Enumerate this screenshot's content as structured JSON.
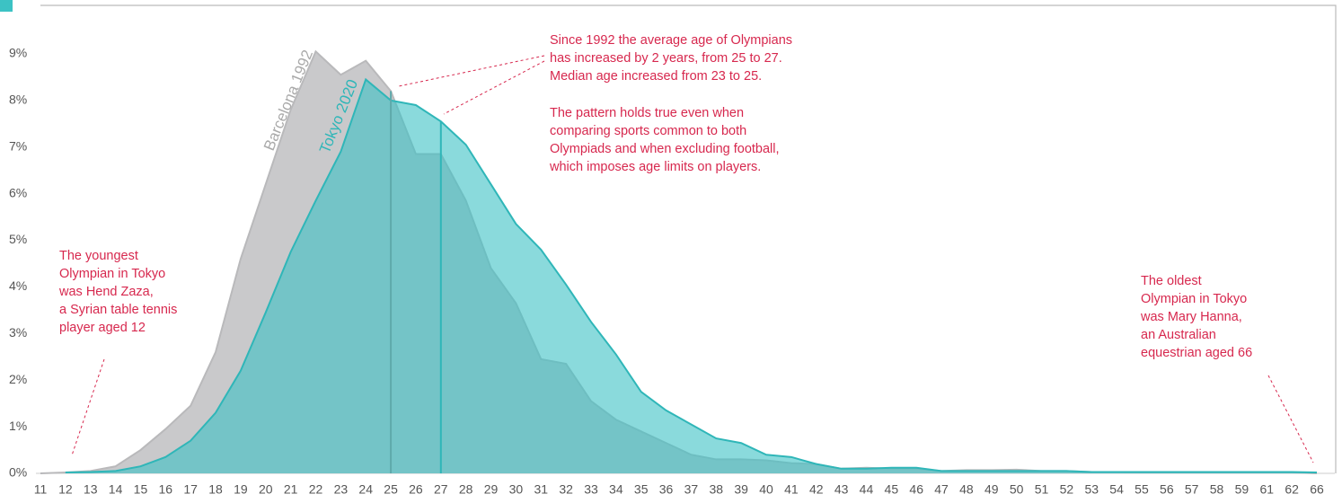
{
  "chart_data": {
    "type": "area",
    "categories": [
      11,
      12,
      13,
      14,
      15,
      16,
      17,
      18,
      19,
      20,
      21,
      22,
      23,
      24,
      25,
      26,
      27,
      28,
      29,
      30,
      31,
      32,
      33,
      34,
      35,
      36,
      37,
      38,
      39,
      40,
      41,
      42,
      43,
      44,
      45,
      46,
      47,
      48,
      49,
      50,
      51,
      52,
      53,
      54,
      55,
      56,
      57,
      58,
      59,
      61,
      62,
      66
    ],
    "series": [
      {
        "name": "Barcelona 1992",
        "color": "#c9c9cb",
        "values": [
          0,
          0.02,
          0.05,
          0.15,
          0.5,
          0.95,
          1.45,
          2.6,
          4.6,
          6.2,
          7.8,
          9.05,
          8.55,
          8.85,
          8.2,
          6.85,
          6.85,
          5.85,
          4.4,
          3.65,
          2.45,
          2.35,
          1.55,
          1.15,
          0.9,
          0.65,
          0.4,
          0.3,
          0.3,
          0.28,
          0.22,
          0.2,
          0.1,
          0.12,
          0.1,
          0.1,
          0.05,
          0.07,
          0.07,
          0.08,
          0.05,
          0.05,
          0.03,
          0.03,
          0.02,
          0.02,
          0.02,
          0.02,
          0.02,
          0.02,
          0.02,
          0
        ]
      },
      {
        "name": "Tokyo 2020",
        "color": "#3cc2c4",
        "values": [
          null,
          0.02,
          0.03,
          0.05,
          0.15,
          0.35,
          0.7,
          1.3,
          2.2,
          3.45,
          4.75,
          5.85,
          6.9,
          8.45,
          8.0,
          7.9,
          7.55,
          7.05,
          6.2,
          5.35,
          4.8,
          4.05,
          3.25,
          2.55,
          1.75,
          1.35,
          1.05,
          0.75,
          0.65,
          0.4,
          0.35,
          0.2,
          0.1,
          0.1,
          0.12,
          0.12,
          0.05,
          0.05,
          0.05,
          0.05,
          0.05,
          0.05,
          0.03,
          0.03,
          0.03,
          0.03,
          0.03,
          0.03,
          0.03,
          0.03,
          0.03,
          0.02
        ]
      }
    ],
    "median_lines": [
      {
        "series": 0,
        "x": 25
      },
      {
        "series": 1,
        "x": 27
      }
    ],
    "ylim": [
      0,
      9.2
    ],
    "yticks": [
      {
        "value": 0,
        "label": "0%"
      },
      {
        "value": 1,
        "label": "1%"
      },
      {
        "value": 2,
        "label": "2%"
      },
      {
        "value": 3,
        "label": "3%"
      },
      {
        "value": 4,
        "label": "4%"
      },
      {
        "value": 5,
        "label": "5%"
      },
      {
        "value": 6,
        "label": "6%"
      },
      {
        "value": 7,
        "label": "7%"
      },
      {
        "value": 8,
        "label": "8%"
      },
      {
        "value": 9,
        "label": "9%"
      }
    ],
    "annotations": [
      {
        "lines": [
          "Since 1992 the average age of Olympians",
          "has increased by 2 years, from 25 to 27.",
          "Median age increased from 23 to 25."
        ]
      },
      {
        "lines": [
          "The pattern holds true even when",
          "comparing sports common to both",
          "Olympiads and when excluding football,",
          "which imposes age limits on players."
        ]
      },
      {
        "lines": [
          "The youngest",
          "Olympian in Tokyo",
          "was Hend Zaza,",
          "a Syrian table tennis",
          "player aged 12"
        ]
      },
      {
        "lines": [
          "The oldest",
          "Olympian in Tokyo",
          "was Mary Hanna,",
          "an Australian",
          "equestrian aged 66"
        ]
      }
    ]
  }
}
